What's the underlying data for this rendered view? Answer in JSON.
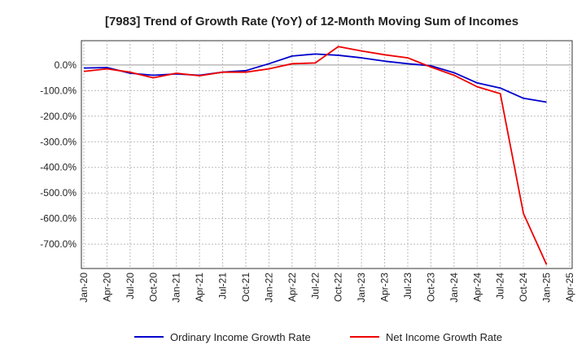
{
  "chart_data": {
    "type": "line",
    "title": "[7983]  Trend of Growth Rate (YoY) of 12-Month Moving Sum of Incomes",
    "xlabel": "",
    "ylabel": "",
    "x_ticks": [
      "Jan-20",
      "Apr-20",
      "Jul-20",
      "Oct-20",
      "Jan-21",
      "Apr-21",
      "Jul-21",
      "Oct-21",
      "Jan-22",
      "Apr-22",
      "Jul-22",
      "Oct-22",
      "Jan-23",
      "Apr-23",
      "Jul-23",
      "Oct-23",
      "Jan-24",
      "Apr-24",
      "Jul-24",
      "Oct-24",
      "Jan-25",
      "Apr-25"
    ],
    "y_ticks": [
      "0.0%",
      "-100.0%",
      "-200.0%",
      "-300.0%",
      "-400.0%",
      "-500.0%",
      "-600.0%",
      "-700.0%"
    ],
    "y_tick_values": [
      0,
      -100,
      -200,
      -300,
      -400,
      -500,
      -600,
      -700
    ],
    "ylim": [
      -795,
      95
    ],
    "xlim": [
      "Jan-20",
      "Apr-25"
    ],
    "grid": true,
    "legend_position": "bottom",
    "x": [
      "Jan-20",
      "Apr-20",
      "Jul-20",
      "Oct-20",
      "Jan-21",
      "Apr-21",
      "Jul-21",
      "Oct-21",
      "Jan-22",
      "Apr-22",
      "Jul-22",
      "Oct-22",
      "Jan-23",
      "Apr-23",
      "Jul-23",
      "Oct-23",
      "Jan-24",
      "Apr-24",
      "Jul-24",
      "Oct-24",
      "Jan-25"
    ],
    "series": [
      {
        "name": "Ordinary Income Growth Rate",
        "color": "#0000cc",
        "values": [
          -12,
          -10,
          -32,
          -40,
          -35,
          -40,
          -28,
          -22,
          5,
          35,
          43,
          38,
          28,
          15,
          5,
          -3,
          -30,
          -70,
          -90,
          -130,
          -145
        ]
      },
      {
        "name": "Net Income Growth Rate",
        "color": "#ee0000",
        "values": [
          -25,
          -15,
          -28,
          -50,
          -32,
          -42,
          -28,
          -28,
          -15,
          5,
          8,
          72,
          55,
          40,
          28,
          -8,
          -40,
          -85,
          -112,
          -580,
          -780
        ]
      }
    ]
  }
}
